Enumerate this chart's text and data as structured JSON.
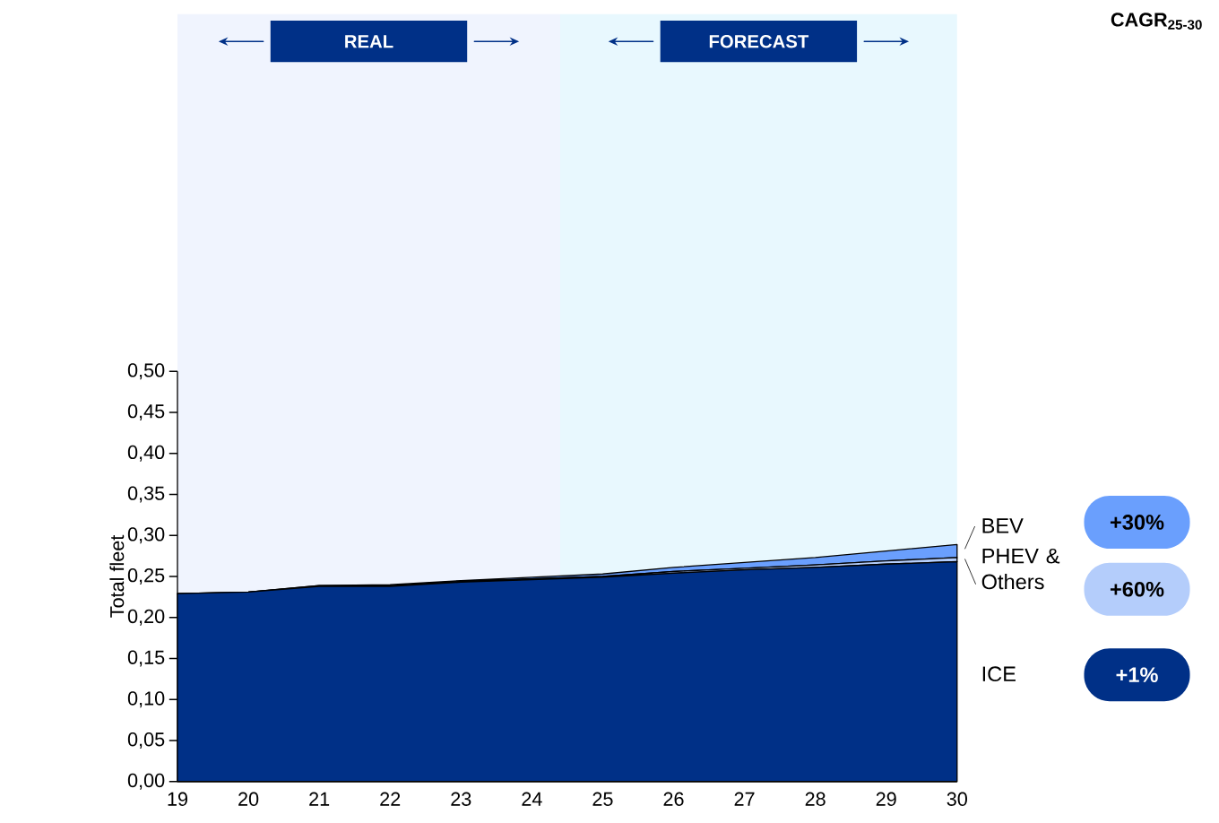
{
  "chart_data": {
    "type": "area",
    "stacked": true,
    "ylabel": "Total fleet",
    "x": [
      19,
      20,
      21,
      22,
      23,
      24,
      25,
      26,
      27,
      28,
      29,
      30
    ],
    "xlim": [
      19,
      30
    ],
    "xticks": [
      19,
      20,
      21,
      22,
      23,
      24,
      25,
      26,
      27,
      28,
      29,
      30
    ],
    "ylim": [
      0,
      0.5
    ],
    "yticks": [
      {
        "value": 0,
        "label": "0,00"
      },
      {
        "value": 0.05,
        "label": "0,05"
      },
      {
        "value": 0.1,
        "label": "0,10"
      },
      {
        "value": 0.15,
        "label": "0,15"
      },
      {
        "value": 0.2,
        "label": "0,20"
      },
      {
        "value": 0.25,
        "label": "0,25"
      },
      {
        "value": 0.3,
        "label": "0,30"
      },
      {
        "value": 0.35,
        "label": "0,35"
      },
      {
        "value": 0.4,
        "label": "0,40"
      },
      {
        "value": 0.45,
        "label": "0,45"
      },
      {
        "value": 0.5,
        "label": "0,50"
      }
    ],
    "series": [
      {
        "name": "ICE",
        "color": "#003087",
        "values": [
          0.229,
          0.231,
          0.238,
          0.238,
          0.243,
          0.246,
          0.249,
          0.254,
          0.258,
          0.261,
          0.265,
          0.268
        ]
      },
      {
        "name": "PHEV & Others",
        "color": "#b4cdfb",
        "values": [
          0.0,
          0.0,
          0.001,
          0.001,
          0.001,
          0.001,
          0.001,
          0.002,
          0.002,
          0.003,
          0.004,
          0.005
        ]
      },
      {
        "name": "BEV",
        "color": "#6a9ffd",
        "values": [
          0.0,
          0.0,
          0.0,
          0.001,
          0.001,
          0.002,
          0.003,
          0.005,
          0.007,
          0.009,
          0.012,
          0.016
        ]
      }
    ],
    "bands": [
      {
        "axis": "x",
        "from": 19,
        "to": 24.4,
        "label": "REAL",
        "color": "#f0f4fe"
      },
      {
        "axis": "x",
        "from": 24.4,
        "to": 30,
        "label": "FORECAST",
        "color": "#e8f8fe"
      }
    ],
    "legend": "right",
    "annotations": [
      "CAGR$_{25-30}$",
      "+30%",
      "+60%",
      "+1%"
    ]
  }
}
